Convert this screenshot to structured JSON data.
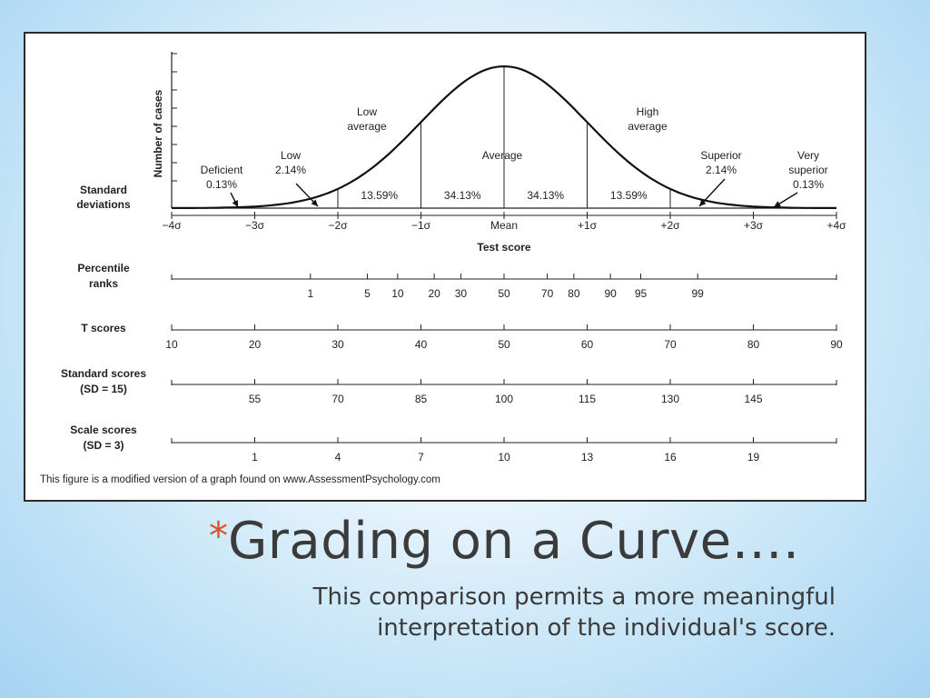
{
  "slide": {
    "title_bullet": "*",
    "title": "Grading on a Curve….",
    "subtitle_line1": "This comparison permits a more meaningful",
    "subtitle_line2": "interpretation of the individual's score."
  },
  "figure": {
    "y_axis_label": "Number of cases",
    "x_axis_label": "Test score",
    "sd_row_label": [
      "Standard",
      "deviations"
    ],
    "sd_ticks": [
      "−4σ",
      "−3σ",
      "−2σ",
      "−1σ",
      "Mean",
      "+1σ",
      "+2σ",
      "+3σ",
      "+4σ"
    ],
    "regions": [
      {
        "label": [
          "Deficient",
          "0.13%"
        ]
      },
      {
        "label": [
          "Low",
          "2.14%"
        ]
      },
      {
        "label": [
          "Low",
          "average"
        ],
        "percent": "13.59%"
      },
      {
        "label": [
          "Average"
        ],
        "percent": "34.13%"
      },
      {
        "percent": "34.13%"
      },
      {
        "label": [
          "High",
          "average"
        ],
        "percent": "13.59%"
      },
      {
        "label": [
          "Superior",
          "2.14%"
        ]
      },
      {
        "label": [
          "Very",
          "superior",
          "0.13%"
        ]
      }
    ],
    "scales": [
      {
        "label": [
          "Percentile",
          "ranks"
        ],
        "values": [
          "1",
          "5",
          "10",
          "20",
          "30",
          "50",
          "70",
          "80",
          "90",
          "95",
          "99"
        ],
        "z": [
          -2.33,
          -1.645,
          -1.28,
          -0.84,
          -0.52,
          0,
          0.52,
          0.84,
          1.28,
          1.645,
          2.33
        ]
      },
      {
        "label": [
          "T scores"
        ],
        "values": [
          "10",
          "20",
          "30",
          "40",
          "50",
          "60",
          "70",
          "80",
          "90"
        ],
        "z": [
          -4,
          -3,
          -2,
          -1,
          0,
          1,
          2,
          3,
          4
        ]
      },
      {
        "label": [
          "Standard scores",
          "(SD = 15)"
        ],
        "values": [
          "55",
          "70",
          "85",
          "100",
          "115",
          "130",
          "145"
        ],
        "z": [
          -3,
          -2,
          -1,
          0,
          1,
          2,
          3
        ]
      },
      {
        "label": [
          "Scale scores",
          "(SD = 3)"
        ],
        "values": [
          "1",
          "4",
          "7",
          "10",
          "13",
          "16",
          "19"
        ],
        "z": [
          -3,
          -2,
          -1,
          0,
          1,
          2,
          3
        ]
      }
    ],
    "footnote": "This figure is a modified version of a graph found on www.AssessmentPsychology.com"
  }
}
